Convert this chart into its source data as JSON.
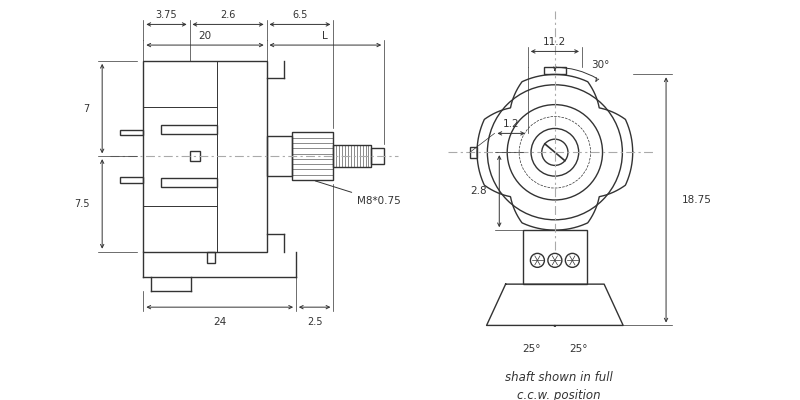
{
  "bg_color": "#ffffff",
  "line_color": "#333333",
  "dim_color": "#333333",
  "centerline_color": "#aaaaaa",
  "fig_width": 8.0,
  "fig_height": 4.0,
  "annotations": {
    "dim_20": "20",
    "dim_L": "L",
    "dim_3_75": "3.75",
    "dim_2_6": "2.6",
    "dim_6_5": "6.5",
    "dim_7": "7",
    "dim_7_5": "7.5",
    "dim_24": "24",
    "dim_2_5": "2.5",
    "dim_M8": "M8*0.75",
    "dim_11_2": "11.2",
    "dim_30": "30°",
    "dim_1_2": "1.2",
    "dim_2_8": "2.8",
    "dim_18_75": "18.75",
    "dim_25L": "25°",
    "dim_25R": "25°",
    "caption1": "shaft shown in full",
    "caption2": "c.c.w. position"
  }
}
